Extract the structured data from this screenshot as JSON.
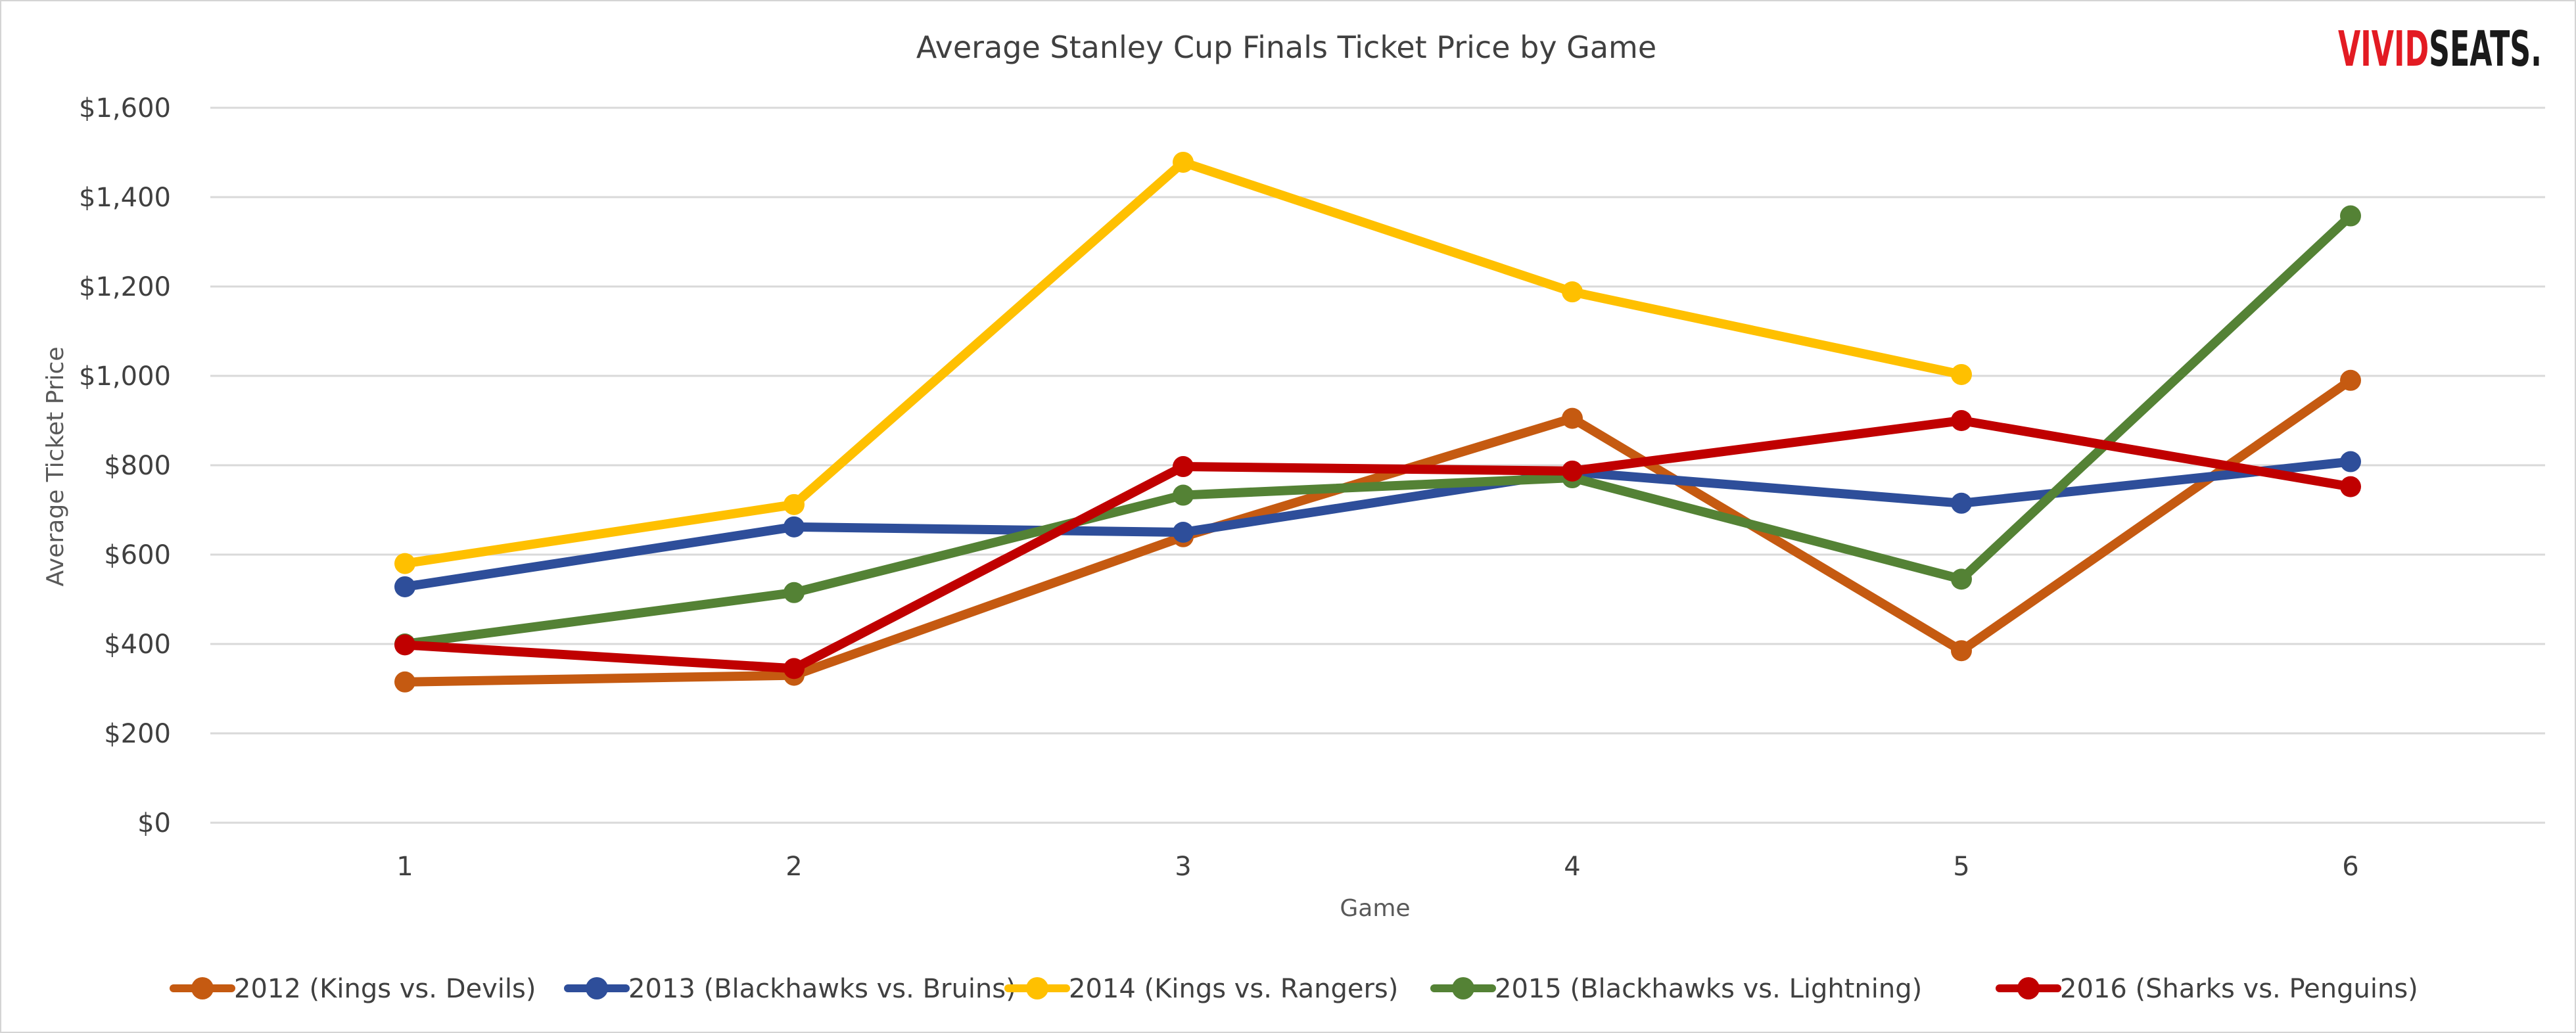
{
  "brand": {
    "part1": "VIVID",
    "part2": "SEATS",
    "part3": ".",
    "color_red": "#e31b23",
    "color_black": "#1a1a1a"
  },
  "chart_data": {
    "type": "line",
    "title": "Average Stanley Cup Finals Ticket Price by Game",
    "xlabel": "Game",
    "ylabel": "Average Ticket Price",
    "categories": [
      "1",
      "2",
      "3",
      "4",
      "5",
      "6"
    ],
    "ylim": [
      0,
      1600
    ],
    "yticks": [
      0,
      200,
      400,
      600,
      800,
      1000,
      1200,
      1400,
      1600
    ],
    "ytick_labels": [
      "$0",
      "$200",
      "$400",
      "$600",
      "$800",
      "$1,000",
      "$1,200",
      "$1,400",
      "$1,600"
    ],
    "grid": true,
    "legend_position": "bottom",
    "series": [
      {
        "name": "2012 (Kings vs. Devils)",
        "color": "#c55a11",
        "values": [
          315,
          330,
          640,
          905,
          385,
          990
        ]
      },
      {
        "name": "2013 (Blackhawks vs. Bruins)",
        "color": "#2e4e9a",
        "values": [
          528,
          662,
          650,
          785,
          715,
          808
        ]
      },
      {
        "name": "2014 (Kings vs. Rangers)",
        "color": "#ffc000",
        "values": [
          580,
          712,
          1478,
          1188,
          1003,
          null
        ]
      },
      {
        "name": "2015 (Blackhawks vs. Lightning)",
        "color": "#548235",
        "values": [
          400,
          515,
          733,
          772,
          545,
          1358
        ]
      },
      {
        "name": "2016 (Sharks vs. Penguins)",
        "color": "#c00000",
        "values": [
          398,
          345,
          797,
          787,
          900,
          752
        ]
      }
    ]
  }
}
